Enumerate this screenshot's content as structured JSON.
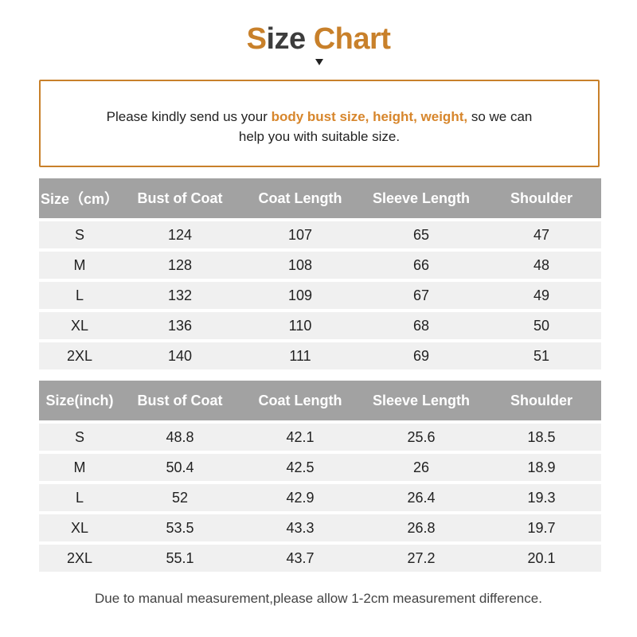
{
  "title": {
    "first": "S",
    "rest": "ize ",
    "accent": "Chart"
  },
  "notice": {
    "before": "Please kindly send us your ",
    "highlight": "body bust size, height, weight,",
    "after_line1": " so we can",
    "line2": "help you with suitable size.",
    "highlight_color": "#d7862c",
    "border_color": "#c8802a"
  },
  "columns": [
    "Bust of Coat",
    "Coat Length",
    "Sleeve Length",
    "Shoulder"
  ],
  "tables": [
    {
      "size_label": "Size（cm）",
      "rows": [
        [
          "S",
          "124",
          "107",
          "65",
          "47"
        ],
        [
          "M",
          "128",
          "108",
          "66",
          "48"
        ],
        [
          "L",
          "132",
          "109",
          "67",
          "49"
        ],
        [
          "XL",
          "136",
          "110",
          "68",
          "50"
        ],
        [
          "2XL",
          "140",
          "111",
          "69",
          "51"
        ]
      ]
    },
    {
      "size_label": "Size(inch)",
      "rows": [
        [
          "S",
          "48.8",
          "42.1",
          "25.6",
          "18.5"
        ],
        [
          "M",
          "50.4",
          "42.5",
          "26",
          "18.9"
        ],
        [
          "L",
          "52",
          "42.9",
          "26.4",
          "19.3"
        ],
        [
          "XL",
          "53.5",
          "43.3",
          "26.8",
          "19.7"
        ],
        [
          "2XL",
          "55.1",
          "43.7",
          "27.2",
          "20.1"
        ]
      ]
    }
  ],
  "footer": "Due to manual measurement,please allow 1-2cm measurement difference.",
  "colors": {
    "accent": "#c8802a",
    "header_bg": "#a2a2a2",
    "row_bg": "#f0f0f0"
  }
}
